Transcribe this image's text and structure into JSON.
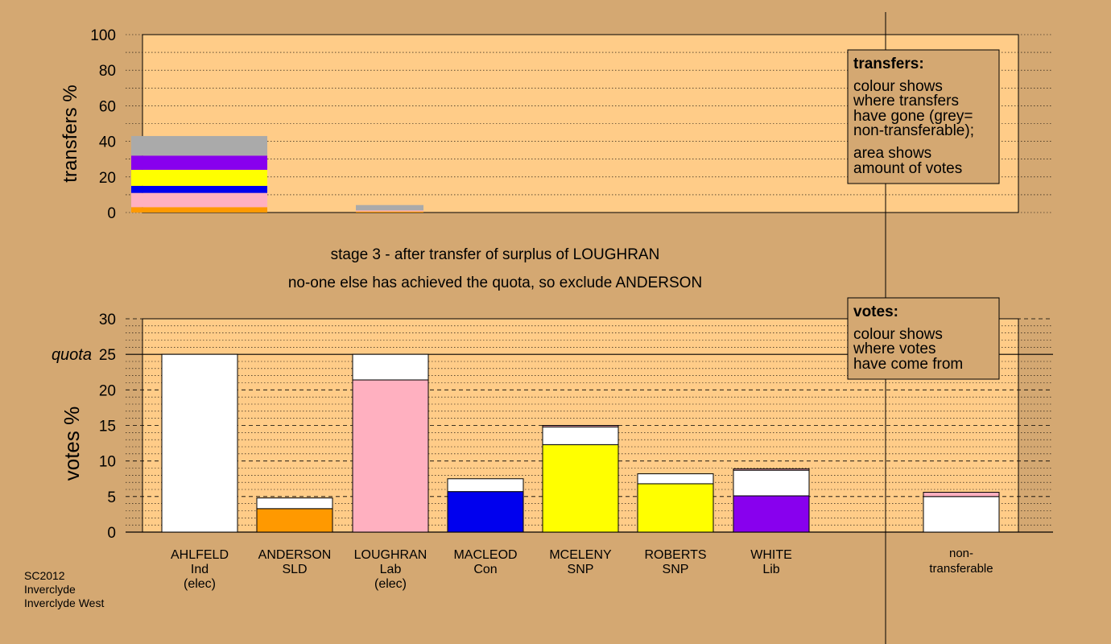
{
  "top_chart": {
    "ylabel": "transfers %",
    "ylim": [
      0,
      100
    ],
    "ticks": [
      "0",
      "20",
      "40",
      "60",
      "80",
      "100"
    ]
  },
  "bottom_chart": {
    "ylabel": "votes %",
    "ylim": [
      0,
      30
    ],
    "ticks": [
      "0",
      "5",
      "10",
      "15",
      "20",
      "25",
      "30"
    ],
    "quota_label": "quota",
    "quota_value": 25
  },
  "stage_line1": "stage 3 - after transfer of surplus of LOUGHRAN",
  "stage_line2": "no-one else has achieved the quota, so exclude ANDERSON",
  "legend_transfers": {
    "title": "transfers:",
    "lines": [
      "colour shows",
      "where transfers",
      "have gone (grey=",
      "non-transferable);",
      "area shows",
      "amount of votes"
    ]
  },
  "legend_votes": {
    "title": "votes:",
    "lines": [
      "colour shows",
      "where votes",
      "have come from"
    ]
  },
  "footer": [
    "SC2012",
    "Inverclyde",
    "Inverclyde West"
  ],
  "colors": {
    "background": "#d4a872",
    "plot_bg": "#ffcc88",
    "Ind": "#ffffff",
    "SLD": "#ff9900",
    "Lab": "#ffb0c0",
    "Con": "#0000ee",
    "SNP": "#ffff00",
    "Lib": "#8800ee",
    "non_transferable": "#aaaaaa"
  },
  "chart_data": [
    {
      "type": "bar",
      "title": "",
      "ylabel": "transfers %",
      "ylim": [
        0,
        100
      ],
      "grid": true,
      "bars": [
        {
          "column": 0,
          "segments": [
            {
              "color": "SLD",
              "value": 3
            },
            {
              "color": "Lab",
              "value": 8
            },
            {
              "color": "Con",
              "value": 4
            },
            {
              "color": "SNP",
              "value": 9
            },
            {
              "color": "Lib",
              "value": 8
            },
            {
              "color": "non_transferable",
              "value": 11
            }
          ]
        },
        {
          "column": 2,
          "segments": [
            {
              "color": "SLD",
              "value": 0.6
            },
            {
              "color": "Lab",
              "value": 0.6
            },
            {
              "color": "non_transferable",
              "value": 3
            }
          ]
        }
      ]
    },
    {
      "type": "bar",
      "title": "",
      "ylabel": "votes %",
      "ylim": [
        0,
        30
      ],
      "grid": true,
      "quota": 25,
      "candidates": [
        {
          "name": "AHLFELD",
          "party": "Ind",
          "note": "(elec)",
          "segments": [
            {
              "color": "Ind",
              "value": 25
            }
          ]
        },
        {
          "name": "ANDERSON",
          "party": "SLD",
          "note": "",
          "segments": [
            {
              "color": "SLD",
              "value": 3.3
            },
            {
              "color": "Ind",
              "value": 1.5
            }
          ]
        },
        {
          "name": "LOUGHRAN",
          "party": "Lab",
          "note": "(elec)",
          "segments": [
            {
              "color": "Lab",
              "value": 21.4
            },
            {
              "color": "Ind",
              "value": 3.6
            }
          ]
        },
        {
          "name": "MACLEOD",
          "party": "Con",
          "note": "",
          "segments": [
            {
              "color": "Con",
              "value": 5.7
            },
            {
              "color": "Ind",
              "value": 1.8
            }
          ]
        },
        {
          "name": "MCELENY",
          "party": "SNP",
          "note": "",
          "segments": [
            {
              "color": "SNP",
              "value": 12.3
            },
            {
              "color": "Ind",
              "value": 2.5
            },
            {
              "color": "Lab",
              "value": 0.2
            }
          ]
        },
        {
          "name": "ROBERTS",
          "party": "SNP",
          "note": "",
          "segments": [
            {
              "color": "SNP",
              "value": 6.8
            },
            {
              "color": "Ind",
              "value": 1.4
            }
          ]
        },
        {
          "name": "WHITE",
          "party": "Lib",
          "note": "",
          "segments": [
            {
              "color": "Lib",
              "value": 5.1
            },
            {
              "color": "Ind",
              "value": 3.6
            },
            {
              "color": "Lab",
              "value": 0.2
            }
          ]
        }
      ],
      "non_transferable": {
        "label_line1": "non-",
        "label_line2": "transferable",
        "segments": [
          {
            "color": "Ind",
            "value": 5.0
          },
          {
            "color": "Lab",
            "value": 0.6
          }
        ]
      }
    }
  ]
}
